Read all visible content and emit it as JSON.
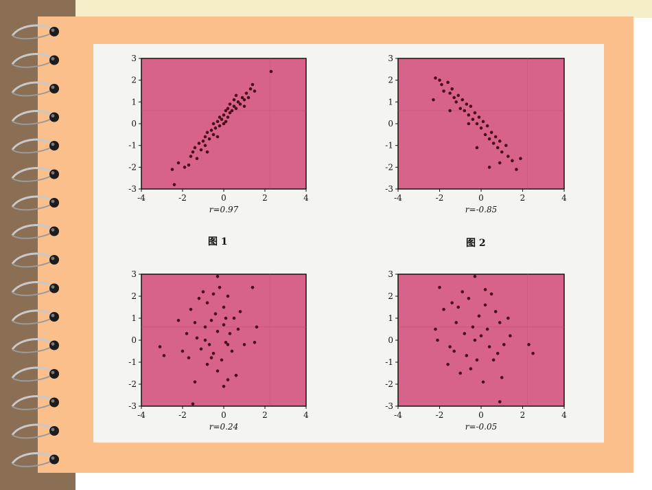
{
  "page": {
    "colors": {
      "slide_bg": "#fbbf8c",
      "strip_bg": "#8a6f55",
      "plot_bg": "#d8638a",
      "point": "#4a0c18",
      "top_bar": "#f6eec9"
    },
    "icons": [
      "spiral-ring-icon"
    ],
    "captions": [
      "图 1",
      "图 2"
    ]
  },
  "chart_data": [
    {
      "type": "scatter",
      "title": "",
      "label": "r=0.97",
      "xlim": [
        -4,
        4
      ],
      "ylim": [
        -3,
        3
      ],
      "xticks": [
        -4,
        -2,
        0,
        2,
        4
      ],
      "yticks": [
        -3,
        -2,
        -1,
        0,
        1,
        2,
        3
      ],
      "points": [
        [
          -2.5,
          -2.1
        ],
        [
          -2.4,
          -2.8
        ],
        [
          -2.2,
          -1.8
        ],
        [
          -1.9,
          -2.0
        ],
        [
          -1.6,
          -1.5
        ],
        [
          -1.5,
          -1.3
        ],
        [
          -1.4,
          -1.1
        ],
        [
          -1.3,
          -1.6
        ],
        [
          -1.2,
          -0.9
        ],
        [
          -1.1,
          -1.2
        ],
        [
          -1.0,
          -0.8
        ],
        [
          -0.9,
          -0.6
        ],
        [
          -0.9,
          -1.0
        ],
        [
          -0.8,
          -0.4
        ],
        [
          -0.7,
          -0.7
        ],
        [
          -0.6,
          -0.3
        ],
        [
          -0.5,
          -0.5
        ],
        [
          -0.4,
          -0.2
        ],
        [
          -0.3,
          0.1
        ],
        [
          -0.2,
          -0.1
        ],
        [
          -0.2,
          0.3
        ],
        [
          -0.1,
          0.2
        ],
        [
          0.0,
          0.0
        ],
        [
          0.0,
          0.4
        ],
        [
          0.1,
          0.1
        ],
        [
          0.1,
          0.6
        ],
        [
          0.2,
          0.3
        ],
        [
          0.2,
          0.7
        ],
        [
          0.3,
          0.5
        ],
        [
          0.3,
          0.9
        ],
        [
          0.4,
          0.6
        ],
        [
          0.5,
          0.8
        ],
        [
          0.5,
          1.1
        ],
        [
          0.6,
          0.7
        ],
        [
          0.7,
          1.0
        ],
        [
          0.8,
          0.9
        ],
        [
          0.9,
          1.2
        ],
        [
          1.0,
          1.1
        ],
        [
          1.1,
          1.4
        ],
        [
          1.2,
          1.2
        ],
        [
          1.3,
          1.6
        ],
        [
          1.4,
          1.8
        ],
        [
          1.5,
          1.5
        ],
        [
          2.3,
          2.4
        ],
        [
          -0.5,
          0.0
        ],
        [
          -0.3,
          -0.6
        ],
        [
          0.6,
          1.3
        ],
        [
          1.0,
          0.8
        ],
        [
          -1.7,
          -1.9
        ],
        [
          -0.8,
          -1.3
        ]
      ]
    },
    {
      "type": "scatter",
      "title": "",
      "label": "r=-0.85",
      "xlim": [
        -4,
        4
      ],
      "ylim": [
        -3,
        3
      ],
      "xticks": [
        -4,
        -2,
        0,
        2,
        4
      ],
      "yticks": [
        -3,
        -2,
        -1,
        0,
        1,
        2,
        3
      ],
      "points": [
        [
          -2.2,
          2.1
        ],
        [
          -2.0,
          2.0
        ],
        [
          -1.9,
          1.8
        ],
        [
          -1.8,
          1.5
        ],
        [
          -1.6,
          1.9
        ],
        [
          -1.5,
          1.4
        ],
        [
          -1.4,
          1.6
        ],
        [
          -1.3,
          1.2
        ],
        [
          -1.2,
          1.0
        ],
        [
          -1.1,
          1.3
        ],
        [
          -1.0,
          0.7
        ],
        [
          -0.9,
          1.1
        ],
        [
          -0.8,
          0.6
        ],
        [
          -0.7,
          0.9
        ],
        [
          -0.6,
          0.4
        ],
        [
          -0.5,
          0.8
        ],
        [
          -0.4,
          0.2
        ],
        [
          -0.3,
          0.5
        ],
        [
          -0.2,
          0.0
        ],
        [
          -0.1,
          0.3
        ],
        [
          0.0,
          -0.2
        ],
        [
          0.1,
          0.1
        ],
        [
          0.2,
          -0.5
        ],
        [
          0.3,
          -0.1
        ],
        [
          0.4,
          -0.7
        ],
        [
          0.5,
          -0.4
        ],
        [
          0.6,
          -0.9
        ],
        [
          0.7,
          -0.6
        ],
        [
          0.8,
          -1.1
        ],
        [
          0.9,
          -0.8
        ],
        [
          1.0,
          -1.3
        ],
        [
          1.2,
          -1.0
        ],
        [
          1.3,
          -1.5
        ],
        [
          1.5,
          -1.7
        ],
        [
          1.7,
          -2.1
        ],
        [
          1.9,
          -1.6
        ],
        [
          0.4,
          -2.0
        ],
        [
          -0.2,
          -1.1
        ],
        [
          -1.5,
          0.6
        ],
        [
          -2.3,
          1.1
        ],
        [
          0.9,
          -1.8
        ],
        [
          -0.6,
          0.0
        ]
      ]
    },
    {
      "type": "scatter",
      "title": "",
      "label": "r=0.24",
      "xlim": [
        -4,
        4
      ],
      "ylim": [
        -3,
        3
      ],
      "xticks": [
        -4,
        -2,
        0,
        2,
        4
      ],
      "yticks": [
        -3,
        -2,
        -1,
        0,
        1,
        2,
        3
      ],
      "points": [
        [
          -3.1,
          -0.3
        ],
        [
          -2.9,
          -0.7
        ],
        [
          -2.0,
          -0.5
        ],
        [
          -1.8,
          0.3
        ],
        [
          -1.7,
          -0.8
        ],
        [
          -1.6,
          1.4
        ],
        [
          -1.5,
          -2.9
        ],
        [
          -1.4,
          -1.9
        ],
        [
          -1.3,
          0.1
        ],
        [
          -1.2,
          1.9
        ],
        [
          -1.1,
          -0.4
        ],
        [
          -1.0,
          2.2
        ],
        [
          -0.9,
          0.6
        ],
        [
          -0.8,
          -1.1
        ],
        [
          -0.8,
          1.7
        ],
        [
          -0.7,
          -0.2
        ],
        [
          -0.6,
          0.9
        ],
        [
          -0.5,
          2.1
        ],
        [
          -0.5,
          -0.6
        ],
        [
          -0.4,
          1.2
        ],
        [
          -0.3,
          -1.4
        ],
        [
          -0.3,
          0.4
        ],
        [
          -0.2,
          2.4
        ],
        [
          -0.1,
          -0.9
        ],
        [
          0.0,
          0.7
        ],
        [
          0.0,
          1.5
        ],
        [
          0.1,
          -0.1
        ],
        [
          0.2,
          -1.8
        ],
        [
          0.2,
          2.0
        ],
        [
          0.3,
          0.3
        ],
        [
          0.4,
          -0.5
        ],
        [
          0.5,
          1.0
        ],
        [
          0.6,
          -1.6
        ],
        [
          0.7,
          0.5
        ],
        [
          0.8,
          1.3
        ],
        [
          1.0,
          -0.2
        ],
        [
          1.4,
          2.4
        ],
        [
          1.5,
          -0.1
        ],
        [
          1.6,
          0.6
        ],
        [
          -1.4,
          0.8
        ],
        [
          -0.6,
          -0.8
        ],
        [
          0.1,
          1.0
        ],
        [
          -0.9,
          0.0
        ],
        [
          -2.2,
          0.9
        ],
        [
          0.0,
          -2.1
        ],
        [
          0.2,
          -0.2
        ],
        [
          -0.3,
          2.9
        ]
      ]
    },
    {
      "type": "scatter",
      "title": "",
      "label": "r=-0.05",
      "xlim": [
        -4,
        4
      ],
      "ylim": [
        -3,
        3
      ],
      "xticks": [
        -4,
        -2,
        0,
        2,
        4
      ],
      "yticks": [
        -3,
        -2,
        -1,
        0,
        1,
        2,
        3
      ],
      "points": [
        [
          -2.2,
          0.5
        ],
        [
          -2.1,
          0.0
        ],
        [
          -2.0,
          2.4
        ],
        [
          -1.8,
          1.4
        ],
        [
          -1.5,
          -0.3
        ],
        [
          -1.4,
          1.7
        ],
        [
          -1.3,
          -0.5
        ],
        [
          -1.2,
          0.8
        ],
        [
          -1.1,
          1.5
        ],
        [
          -1.0,
          -1.5
        ],
        [
          -0.9,
          2.2
        ],
        [
          -0.8,
          0.3
        ],
        [
          -0.7,
          -0.7
        ],
        [
          -0.6,
          1.9
        ],
        [
          -0.5,
          -1.3
        ],
        [
          -0.4,
          0.6
        ],
        [
          -0.3,
          2.9
        ],
        [
          -0.2,
          -0.9
        ],
        [
          -0.1,
          1.1
        ],
        [
          0.0,
          0.2
        ],
        [
          0.1,
          -1.9
        ],
        [
          0.2,
          1.6
        ],
        [
          0.3,
          0.5
        ],
        [
          0.4,
          -0.3
        ],
        [
          0.5,
          2.1
        ],
        [
          0.6,
          -0.9
        ],
        [
          0.7,
          1.3
        ],
        [
          0.8,
          -0.6
        ],
        [
          0.9,
          0.8
        ],
        [
          1.0,
          -1.7
        ],
        [
          1.1,
          -0.2
        ],
        [
          1.3,
          1.0
        ],
        [
          2.3,
          -0.2
        ],
        [
          2.5,
          -0.6
        ],
        [
          0.9,
          -2.8
        ],
        [
          -0.3,
          0.0
        ],
        [
          -1.6,
          -1.1
        ],
        [
          0.2,
          2.3
        ],
        [
          1.4,
          0.2
        ]
      ]
    }
  ]
}
